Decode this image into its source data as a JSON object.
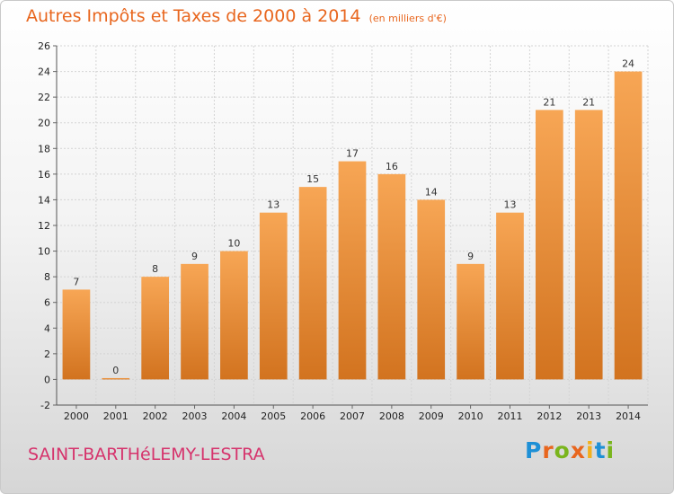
{
  "title": "Autres Impôts et Taxes de 2000 à 2014",
  "unit_note": "(en milliers d'€)",
  "commune": "SAINT-BARTHéLEMY-LESTRA",
  "brand": {
    "letters": [
      "P",
      "r",
      "o",
      "x",
      "i",
      "t",
      "i"
    ],
    "colors": [
      "#1e90d6",
      "#e8661e",
      "#7ab51d",
      "#e8661e",
      "#f2b01e",
      "#1e90d6",
      "#7ab51d"
    ]
  },
  "colors": {
    "bar_light": "#f7a655",
    "bar_dark": "#d2731f",
    "title": "#e8661e",
    "commune": "#d6336c"
  },
  "chart_data": {
    "type": "bar",
    "title": "Autres Impôts et Taxes de 2000 à 2014",
    "subtitle": "(en milliers d'€)",
    "categories": [
      "2000",
      "2001",
      "2002",
      "2003",
      "2004",
      "2005",
      "2006",
      "2007",
      "2008",
      "2009",
      "2010",
      "2011",
      "2012",
      "2013",
      "2014"
    ],
    "values": [
      7,
      0,
      8,
      9,
      10,
      13,
      15,
      17,
      16,
      14,
      9,
      13,
      21,
      21,
      24
    ],
    "ylim": [
      -2,
      26
    ],
    "yticks": [
      -2,
      0,
      2,
      4,
      6,
      8,
      10,
      12,
      14,
      16,
      18,
      20,
      22,
      24,
      26
    ],
    "grid": true
  }
}
